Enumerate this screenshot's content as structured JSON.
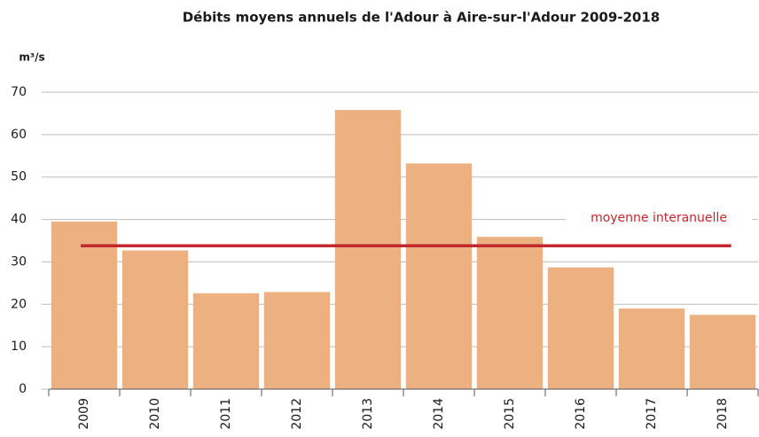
{
  "chart_data": {
    "type": "bar",
    "title": "Débits moyens annuels de l'Adour à Aire-sur-l'Adour  2009-2018",
    "y_label": "m³/s",
    "categories": [
      "2009",
      "2010",
      "2011",
      "2012",
      "2013",
      "2014",
      "2015",
      "2016",
      "2017",
      "2018"
    ],
    "values": [
      39.5,
      32.7,
      22.6,
      22.9,
      65.8,
      53.2,
      35.9,
      28.7,
      19.0,
      17.5
    ],
    "color": "#edb080",
    "ylim": [
      0,
      70
    ],
    "yticks": [
      0,
      10,
      20,
      30,
      40,
      50,
      60,
      70
    ],
    "grid": true,
    "reference_line": {
      "value": 33.8,
      "label": "moyenne interanuelle",
      "color": "#c1272d"
    }
  }
}
